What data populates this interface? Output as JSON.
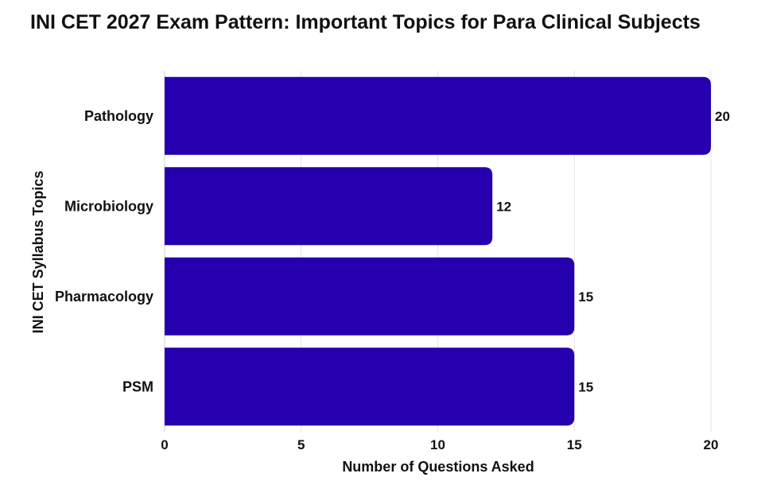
{
  "chart_data": {
    "type": "bar",
    "orientation": "horizontal",
    "title": "INI CET 2027 Exam Pattern: Important Topics for Para Clinical Subjects",
    "xlabel": "Number of Questions Asked",
    "ylabel": "INI CET Syllabus Topics",
    "categories": [
      "Pathology",
      "Microbiology",
      "Pharmacology",
      "PSM"
    ],
    "values": [
      20,
      12,
      15,
      15
    ],
    "xlim": [
      0,
      20
    ],
    "xticks": [
      0,
      5,
      10,
      15,
      20
    ],
    "grid": true,
    "bar_color": "#2600AF"
  }
}
